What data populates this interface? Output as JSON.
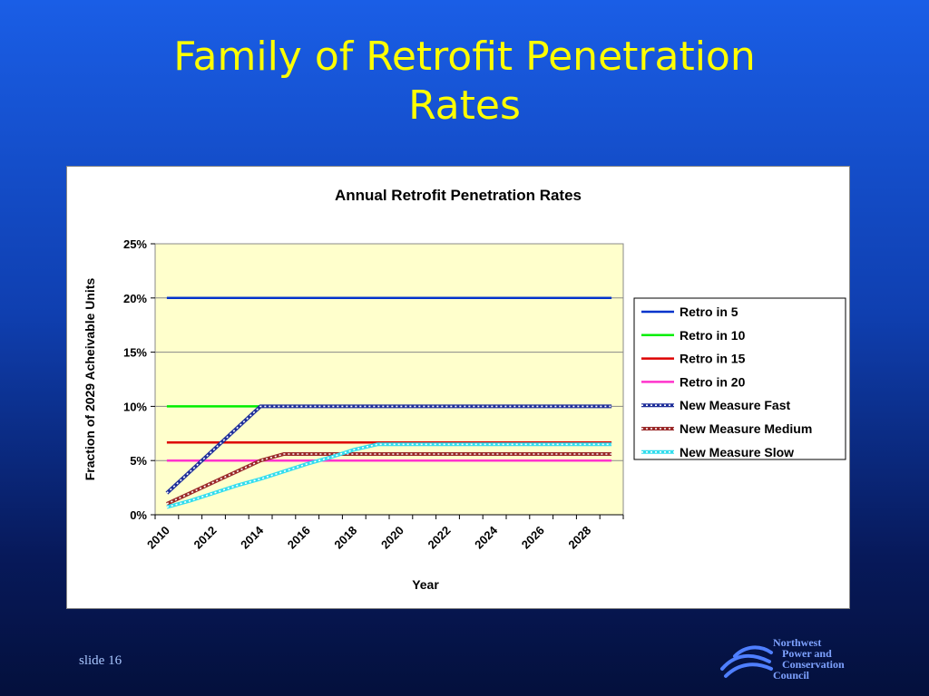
{
  "slide": {
    "title_line1": "Family of Retrofit Penetration",
    "title_line2": "Rates",
    "slide_number": "slide 16",
    "logo_lines": [
      "Northwest",
      "Power and",
      "Conservation",
      "Council"
    ]
  },
  "chart_data": {
    "type": "line",
    "title": "Annual Retrofit Penetration Rates",
    "xlabel": "Year",
    "ylabel": "Fraction of 2029 Acheivable Units",
    "xlim": [
      2009.5,
      2029.5
    ],
    "ylim": [
      0,
      0.25
    ],
    "x_ticks": [
      2010,
      2012,
      2014,
      2016,
      2018,
      2020,
      2022,
      2024,
      2026,
      2028
    ],
    "x_tick_labels": [
      "2010",
      "2012",
      "2014",
      "2016",
      "2018",
      "2020",
      "2022",
      "2024",
      "2026",
      "2028"
    ],
    "y_ticks": [
      0,
      0.05,
      0.1,
      0.15,
      0.2,
      0.25
    ],
    "y_tick_labels": [
      "0%",
      "5%",
      "10%",
      "15%",
      "20%",
      "25%"
    ],
    "grid": "horizontal",
    "plot_background": "#ffffcc",
    "legend_position": "right",
    "series": [
      {
        "name": "Retro in 5",
        "color": "#0033cc",
        "style": "solid",
        "points": [
          [
            2010,
            0.2
          ],
          [
            2029,
            0.2
          ]
        ]
      },
      {
        "name": "Retro in 10",
        "color": "#00ee00",
        "style": "solid",
        "points": [
          [
            2010,
            0.1
          ],
          [
            2014,
            0.1
          ]
        ]
      },
      {
        "name": "Retro in 15",
        "color": "#dd0000",
        "style": "solid",
        "points": [
          [
            2010,
            0.0667
          ],
          [
            2029,
            0.0667
          ]
        ]
      },
      {
        "name": "Retro in 20",
        "color": "#ff33cc",
        "style": "solid",
        "points": [
          [
            2010,
            0.05
          ],
          [
            2029,
            0.05
          ]
        ]
      },
      {
        "name": "New Measure Fast",
        "color": "#1f2f9a",
        "style": "marker",
        "points": [
          [
            2010,
            0.02
          ],
          [
            2011,
            0.04
          ],
          [
            2012,
            0.06
          ],
          [
            2013,
            0.08
          ],
          [
            2014,
            0.1
          ],
          [
            2029,
            0.1
          ]
        ]
      },
      {
        "name": "New Measure Medium",
        "color": "#9a2a2a",
        "style": "marker",
        "points": [
          [
            2010,
            0.01
          ],
          [
            2011,
            0.02
          ],
          [
            2012,
            0.03
          ],
          [
            2013,
            0.04
          ],
          [
            2014,
            0.05
          ],
          [
            2015,
            0.056
          ],
          [
            2029,
            0.056
          ]
        ]
      },
      {
        "name": "New Measure Slow",
        "color": "#33ddee",
        "style": "marker",
        "points": [
          [
            2010,
            0.007
          ],
          [
            2011,
            0.013
          ],
          [
            2012,
            0.02
          ],
          [
            2013,
            0.027
          ],
          [
            2014,
            0.033
          ],
          [
            2015,
            0.04
          ],
          [
            2016,
            0.047
          ],
          [
            2017,
            0.053
          ],
          [
            2018,
            0.06
          ],
          [
            2019,
            0.065
          ],
          [
            2029,
            0.065
          ]
        ]
      }
    ]
  }
}
